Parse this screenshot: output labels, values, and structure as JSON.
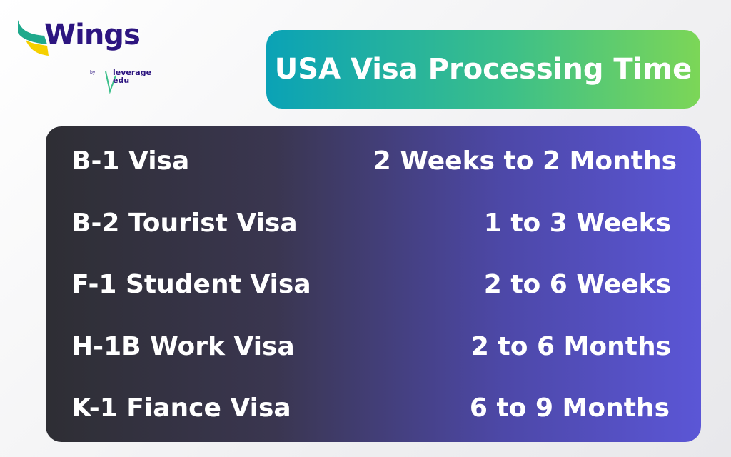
{
  "logo": {
    "brand": "Wings",
    "by": "by",
    "sub": "leverage edu",
    "colors": {
      "primary": "#2d1580",
      "teal": "#1fa98c",
      "yellow": "#f5d000"
    }
  },
  "title": "USA Visa Processing Time",
  "rows": [
    {
      "visa": "B-1 Visa",
      "time": "2 Weeks to 2 Months"
    },
    {
      "visa": "B-2 Tourist Visa",
      "time": "1 to 3 Weeks"
    },
    {
      "visa": "F-1 Student Visa",
      "time": "2 to 6 Weeks"
    },
    {
      "visa": "H-1B Work Visa",
      "time": "2 to 6 Months"
    },
    {
      "visa": "K-1 Fiance Visa",
      "time": "6 to 9 Months"
    }
  ]
}
